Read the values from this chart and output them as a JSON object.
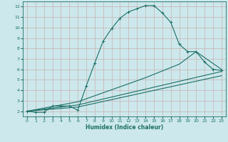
{
  "title": "",
  "xlabel": "Humidex (Indice chaleur)",
  "bg_color": "#cce8ec",
  "line_color": "#1a6e64",
  "grid_color_major": "#c8b8b8",
  "grid_color_minor": "#b8d4d8",
  "x_ticks": [
    0,
    1,
    2,
    3,
    4,
    5,
    6,
    7,
    8,
    9,
    10,
    11,
    12,
    13,
    14,
    15,
    16,
    17,
    18,
    19,
    20,
    21,
    22,
    23
  ],
  "y_ticks": [
    2,
    3,
    4,
    5,
    6,
    7,
    8,
    9,
    10,
    11,
    12
  ],
  "xlim": [
    -0.5,
    23.5
  ],
  "ylim": [
    1.5,
    12.5
  ],
  "line1_x": [
    0,
    1,
    2,
    3,
    4,
    5,
    6,
    7,
    8,
    9,
    10,
    11,
    12,
    13,
    14,
    15,
    16,
    17,
    18,
    19,
    20,
    21,
    22,
    23
  ],
  "line1_y": [
    2.0,
    1.9,
    1.9,
    2.5,
    2.5,
    2.5,
    2.1,
    4.4,
    6.6,
    8.7,
    9.9,
    10.9,
    11.5,
    11.8,
    12.1,
    12.1,
    11.4,
    10.5,
    8.4,
    7.7,
    7.7,
    6.7,
    6.0,
    5.9
  ],
  "line2_x": [
    0,
    6,
    14,
    18,
    20,
    23
  ],
  "line2_y": [
    2.0,
    2.9,
    5.2,
    6.5,
    7.7,
    6.0
  ],
  "line3_x": [
    0,
    6,
    23
  ],
  "line3_y": [
    2.0,
    2.6,
    5.8
  ],
  "line4_x": [
    0,
    6,
    23
  ],
  "line4_y": [
    2.0,
    2.4,
    5.4
  ],
  "linewidth": 0.8,
  "markersize": 3.5
}
